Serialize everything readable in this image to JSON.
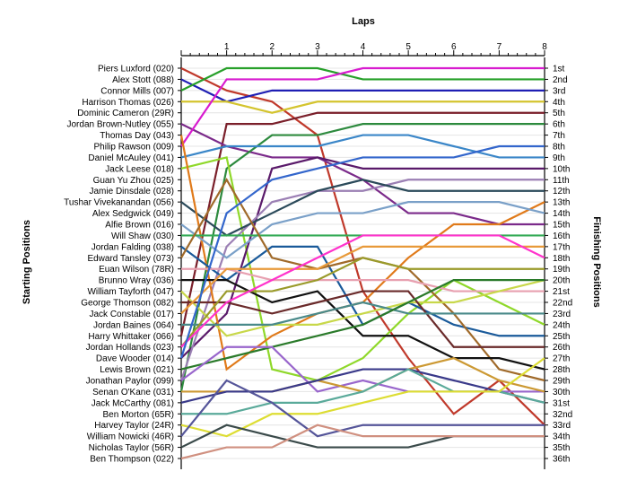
{
  "chart_data": {
    "type": "line",
    "title": "",
    "xlabel": "Laps",
    "ylabel_left": "Starting Positions",
    "ylabel_right": "Finishing Positions",
    "x": [
      0,
      1,
      2,
      3,
      4,
      5,
      6,
      7,
      8
    ],
    "x_ticks": [
      "1",
      "2",
      "3",
      "4",
      "5",
      "6",
      "7",
      "8"
    ],
    "ylim": [
      1,
      36
    ],
    "grid": "horizontal",
    "legend": "none",
    "start_labels": [
      "Piers Luxford (020)",
      "Alex Stott (088)",
      "Connor Mills (007)",
      "Harrison Thomas (026)",
      "Dominic Cameron (29R)",
      "Jordan Brown-Nutley (055)",
      "Thomas Day (043)",
      "Philip Rawson (009)",
      "Daniel McAuley (041)",
      "Jack Leese (018)",
      "Guan Yu Zhou (025)",
      "Jamie Dinsdale (028)",
      "Tushar Vivekanandan (056)",
      "Alex Sedgwick (049)",
      "Alfie Brown (016)",
      "Will Shaw (030)",
      "Jordan Falding (038)",
      "Edward Tansley (073)",
      "Euan Wilson (78R)",
      "Brunno Wray (036)",
      "William Tayforth (047)",
      "George Thomson (082)",
      "Jack Constable (017)",
      "Jordan Baines (064)",
      "Harry Whittaker (066)",
      "Jordan Hollands (023)",
      "Dave Wooder (014)",
      "Lewis Brown (021)",
      "Jonathan Paylor (099)",
      "Senan O'Kane (031)",
      "Jack McCarthy (081)",
      "Ben Morton (65R)",
      "Harvey Taylor (24R)",
      "William Nowicki (46R)",
      "Nicholas Taylor (56R)",
      "Ben Thompson (022)"
    ],
    "finish_labels": [
      "1st",
      "2nd",
      "3rd",
      "4th",
      "5th",
      "6th",
      "7th",
      "8th",
      "9th",
      "10th",
      "11th",
      "12th",
      "13th",
      "14th",
      "15th",
      "16th",
      "17th",
      "18th",
      "19th",
      "20th",
      "21st",
      "22nd",
      "23rd",
      "24th",
      "25th",
      "26th",
      "27th",
      "28th",
      "29th",
      "30th",
      "31st",
      "32nd",
      "33rd",
      "34th",
      "35th",
      "36th"
    ],
    "series": [
      {
        "color": "#c0392b",
        "values": [
          1,
          3,
          4,
          7,
          21,
          27,
          32,
          29,
          33
        ]
      },
      {
        "color": "#1f1fb4",
        "values": [
          2,
          4,
          3,
          3,
          3,
          3,
          3,
          3,
          3
        ]
      },
      {
        "color": "#27a02a",
        "values": [
          3,
          1,
          1,
          1,
          2,
          2,
          2,
          2,
          2
        ]
      },
      {
        "color": "#d4c42e",
        "values": [
          4,
          4,
          5,
          4,
          4,
          4,
          4,
          4,
          4
        ]
      },
      {
        "color": "#7a1f2a",
        "values": [
          25,
          6,
          6,
          5,
          5,
          5,
          5,
          5,
          5
        ]
      },
      {
        "color": "#7b2a8a",
        "values": [
          6,
          8,
          9,
          9,
          11,
          14,
          14,
          15,
          15
        ]
      },
      {
        "color": "#2d8a3e",
        "values": [
          30,
          10,
          7,
          7,
          6,
          6,
          6,
          6,
          6
        ]
      },
      {
        "color": "#d81bcf",
        "values": [
          8,
          2,
          2,
          2,
          1,
          1,
          1,
          1,
          1
        ]
      },
      {
        "color": "#3a86c8",
        "values": [
          9,
          8,
          8,
          8,
          7,
          7,
          8,
          9,
          9
        ]
      },
      {
        "color": "#8fd82a",
        "values": [
          10,
          9,
          28,
          29,
          27,
          23,
          20,
          22,
          24
        ]
      },
      {
        "color": "#5a1a6a",
        "values": [
          27,
          23,
          10,
          9,
          10,
          10,
          10,
          10,
          10
        ]
      },
      {
        "color": "#9b7fb4",
        "values": [
          29,
          17,
          13,
          12,
          12,
          11,
          11,
          11,
          11
        ]
      },
      {
        "color": "#2b4a5a",
        "values": [
          13,
          16,
          14,
          12,
          11,
          12,
          12,
          12,
          12
        ]
      },
      {
        "color": "#e07a1a",
        "values": [
          7,
          28,
          25,
          23,
          22,
          18,
          15,
          15,
          13
        ]
      },
      {
        "color": "#7aa0c8",
        "values": [
          15,
          18,
          15,
          14,
          14,
          13,
          13,
          13,
          14
        ]
      },
      {
        "color": "#33aa55",
        "values": [
          16,
          16,
          16,
          16,
          16,
          16,
          16,
          16,
          16
        ]
      },
      {
        "color": "#1a5a9a",
        "values": [
          17,
          20,
          17,
          17,
          24,
          22,
          24,
          25,
          25
        ]
      },
      {
        "color": "#a06a2a",
        "values": [
          18,
          11,
          18,
          19,
          18,
          19,
          23,
          28,
          29
        ]
      },
      {
        "color": "#e8a0b0",
        "values": [
          19,
          19,
          20,
          20,
          20,
          20,
          21,
          21,
          21
        ]
      },
      {
        "color": "#111111",
        "values": [
          20,
          20,
          22,
          21,
          25,
          25,
          27,
          27,
          28
        ]
      },
      {
        "color": "#c8d84a",
        "values": [
          21,
          25,
          24,
          24,
          23,
          22,
          22,
          21,
          20
        ]
      },
      {
        "color": "#6a2a2a",
        "values": [
          22,
          22,
          23,
          22,
          21,
          21,
          26,
          26,
          26
        ]
      },
      {
        "color": "#e89a3a",
        "values": [
          23,
          19,
          19,
          19,
          17,
          17,
          17,
          17,
          17
        ]
      },
      {
        "color": "#4a8a8a",
        "values": [
          24,
          24,
          24,
          23,
          22,
          23,
          23,
          23,
          23
        ]
      },
      {
        "color": "#9a9a2a",
        "values": [
          26,
          21,
          21,
          20,
          18,
          19,
          19,
          19,
          19
        ]
      },
      {
        "color": "#ff33cc",
        "values": [
          26,
          22,
          20,
          18,
          16,
          16,
          16,
          16,
          18
        ]
      },
      {
        "color": "#3366cc",
        "values": [
          27,
          14,
          11,
          10,
          9,
          9,
          9,
          8,
          8
        ]
      },
      {
        "color": "#2a7a2a",
        "values": [
          28,
          27,
          26,
          25,
          24,
          22,
          20,
          20,
          20
        ]
      },
      {
        "color": "#9966cc",
        "values": [
          29,
          26,
          26,
          30,
          29,
          30,
          30,
          30,
          30
        ]
      },
      {
        "color": "#cc9933",
        "values": [
          30,
          30,
          30,
          29,
          30,
          28,
          27,
          29,
          30
        ]
      },
      {
        "color": "#3a3a8a",
        "values": [
          31,
          30,
          30,
          29,
          28,
          28,
          29,
          30,
          31
        ]
      },
      {
        "color": "#5aaa9a",
        "values": [
          32,
          32,
          31,
          31,
          30,
          28,
          30,
          30,
          31
        ]
      },
      {
        "color": "#dddd33",
        "values": [
          33,
          34,
          32,
          32,
          31,
          30,
          30,
          30,
          27
        ]
      },
      {
        "color": "#555599",
        "values": [
          34,
          29,
          31,
          34,
          33,
          33,
          33,
          33,
          33
        ]
      },
      {
        "color": "#3a4a4a",
        "values": [
          35,
          33,
          34,
          35,
          35,
          35,
          34,
          34,
          34
        ]
      },
      {
        "color": "#d09080",
        "values": [
          36,
          35,
          35,
          33,
          34,
          34,
          34,
          34,
          34
        ]
      }
    ]
  }
}
